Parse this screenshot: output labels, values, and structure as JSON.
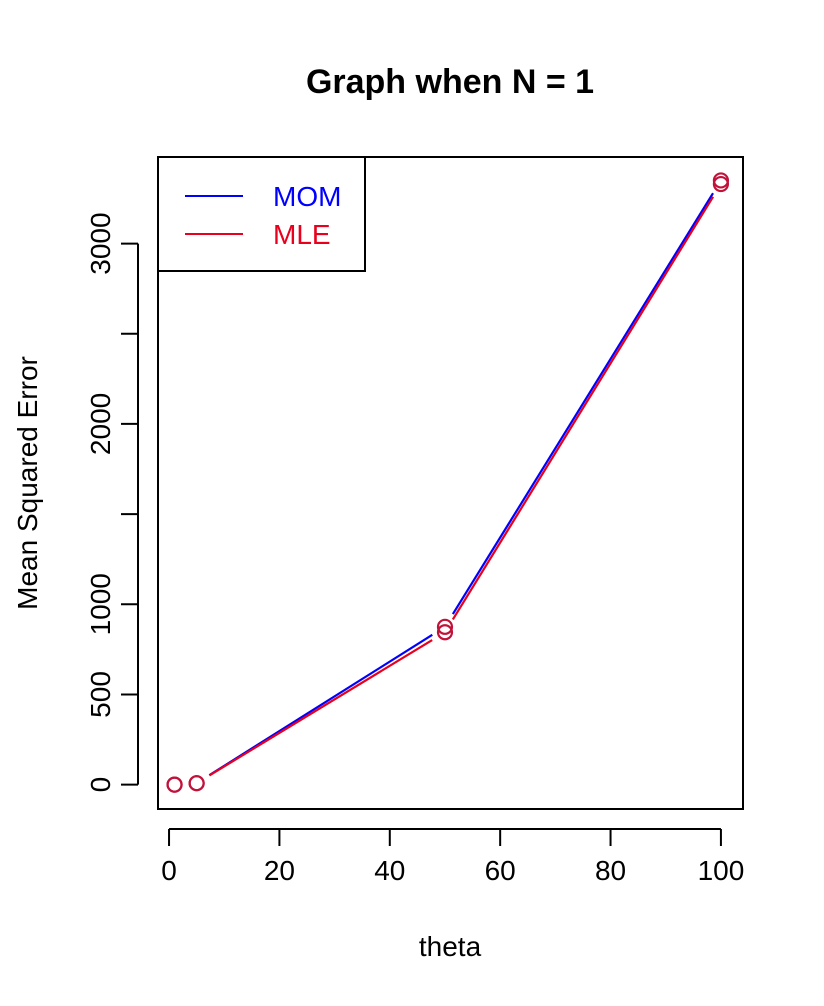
{
  "chart_data": {
    "type": "line",
    "title": "Graph when N = 1",
    "xlabel": "theta",
    "ylabel": "Mean Squared Error",
    "x": [
      1,
      5,
      50,
      100
    ],
    "xlim": [
      -2,
      104
    ],
    "ylim": [
      -135,
      3480
    ],
    "x_ticks": [
      0,
      20,
      40,
      60,
      80,
      100
    ],
    "y_ticks": [
      0,
      500,
      1000,
      1500,
      2000,
      2500,
      3000
    ],
    "y_tick_labels": [
      "0",
      "500",
      "1000",
      "",
      "2000",
      "",
      "3000"
    ],
    "series": [
      {
        "name": "MOM",
        "values": [
          0,
          8,
          875,
          3350
        ],
        "color": "#0000FF"
      },
      {
        "name": "MLE",
        "values": [
          0,
          8,
          845,
          3330
        ],
        "color": "#E8001C"
      }
    ],
    "point_stroke_color": "#C1123A",
    "legend_position": "top-left",
    "grid": false
  }
}
